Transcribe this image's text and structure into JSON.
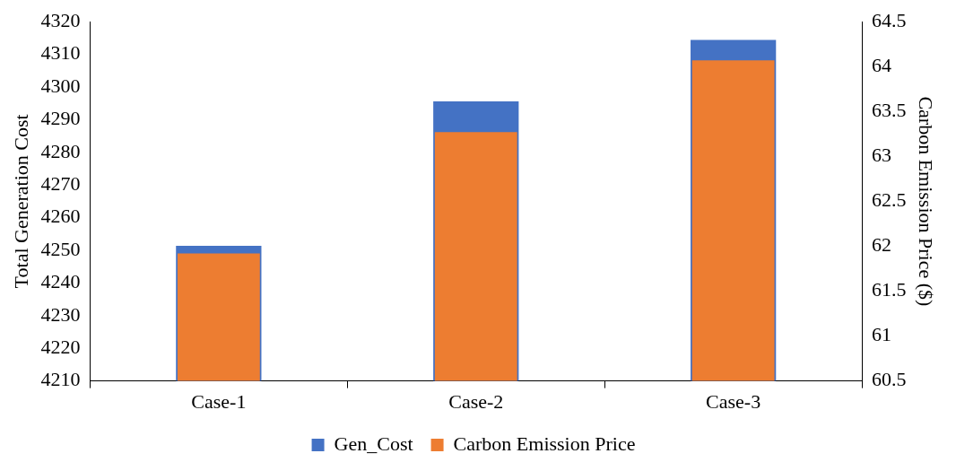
{
  "chart_data": {
    "type": "bar",
    "ylabel": "Total Generation Cost",
    "y2label": "Carbon Emission Price ($)",
    "categories": [
      "Case-1",
      "Case-2",
      "Case-3"
    ],
    "series": [
      {
        "name": "Gen_Cost",
        "color": "#4472c4",
        "values": [
          4251.4,
          4295.6,
          4314.4
        ]
      },
      {
        "name": "Carbon Emission Price",
        "color": "#ed7d31",
        "values": [
          61.92,
          63.27,
          64.07
        ],
        "axis": "y2"
      }
    ],
    "ylim": [
      4210,
      4320
    ],
    "yticks": [
      4210,
      4220,
      4230,
      4240,
      4250,
      4260,
      4270,
      4280,
      4290,
      4300,
      4310,
      4320
    ],
    "y2lim": [
      60.5,
      64.5
    ],
    "y2ticks": [
      60.5,
      61,
      61.5,
      62,
      62.5,
      63,
      63.5,
      64,
      64.5
    ],
    "grid": false,
    "legend": "bottom"
  }
}
